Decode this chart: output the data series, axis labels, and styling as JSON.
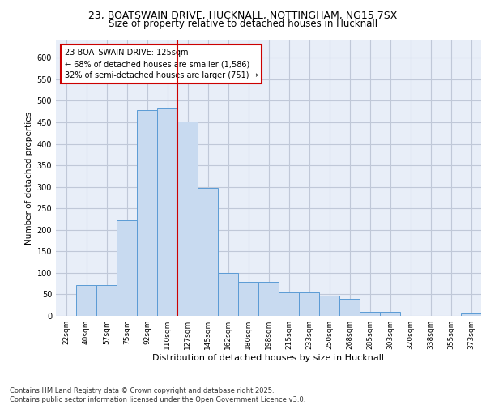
{
  "title_line1": "23, BOATSWAIN DRIVE, HUCKNALL, NOTTINGHAM, NG15 7SX",
  "title_line2": "Size of property relative to detached houses in Hucknall",
  "xlabel": "Distribution of detached houses by size in Hucknall",
  "ylabel": "Number of detached properties",
  "categories": [
    "22sqm",
    "40sqm",
    "57sqm",
    "75sqm",
    "92sqm",
    "110sqm",
    "127sqm",
    "145sqm",
    "162sqm",
    "180sqm",
    "198sqm",
    "215sqm",
    "233sqm",
    "250sqm",
    "268sqm",
    "285sqm",
    "303sqm",
    "320sqm",
    "338sqm",
    "355sqm",
    "373sqm"
  ],
  "values": [
    0,
    72,
    72,
    222,
    478,
    483,
    452,
    297,
    100,
    80,
    80,
    55,
    55,
    48,
    40,
    10,
    10,
    0,
    0,
    0,
    5
  ],
  "bar_color": "#c8daf0",
  "bar_edge_color": "#5b9bd5",
  "annotation_text": "23 BOATSWAIN DRIVE: 125sqm\n← 68% of detached houses are smaller (1,586)\n32% of semi-detached houses are larger (751) →",
  "annotation_box_color": "#ffffff",
  "annotation_box_edge_color": "#cc0000",
  "vline_color": "#cc0000",
  "grid_color": "#c0c8d8",
  "background_color": "#e8eef8",
  "footer_text": "Contains HM Land Registry data © Crown copyright and database right 2025.\nContains public sector information licensed under the Open Government Licence v3.0.",
  "ylim": [
    0,
    640
  ],
  "yticks": [
    0,
    50,
    100,
    150,
    200,
    250,
    300,
    350,
    400,
    450,
    500,
    550,
    600
  ],
  "vline_x": 5.5
}
